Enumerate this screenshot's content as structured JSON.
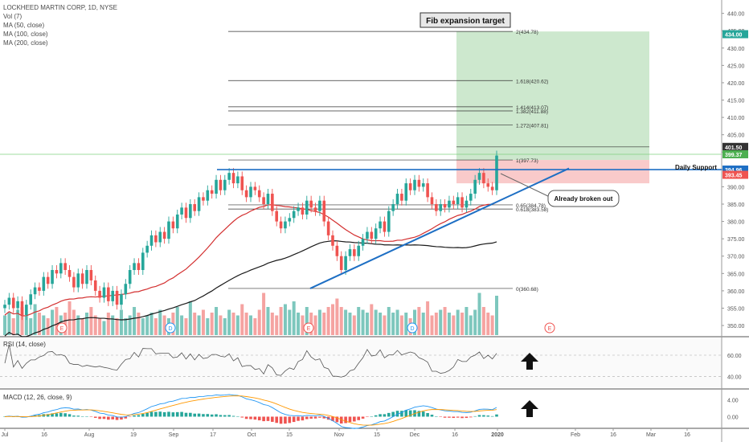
{
  "legend": {
    "symbol": "LOCKHEED MARTIN CORP, 1D, NYSE",
    "vol": "Vol (7)",
    "ma50": "MA (50, close)",
    "ma100": "MA (100, close)",
    "ma200": "MA (200, close)"
  },
  "annotations": {
    "fib_target": "Fib expansion target",
    "daily_support": "Daily Support",
    "broken_out": "Already broken out"
  },
  "colors": {
    "up": "#26a69a",
    "down": "#ef5350",
    "vol_up": "#7dc7bd",
    "vol_down": "#f5a3a1",
    "ma50": "#d32f2f",
    "ma100": "#1a1a1a",
    "trendline": "#1e6fc4",
    "support": "#1e6fc4",
    "target_zone": "#c8e6c9",
    "stop_zone": "#f8c4c4",
    "rsi": "#555555",
    "macd": "#2196f3",
    "signal": "#ff9800",
    "arrow": "#111111"
  },
  "chart_data": {
    "type": "candlestick",
    "price_axis": {
      "ylim": [
        347,
        442
      ],
      "ticks": [
        "440.00",
        "435.00",
        "430.00",
        "425.00",
        "420.00",
        "415.00",
        "410.00",
        "405.00",
        "400.00",
        "395.00",
        "390.00",
        "385.00",
        "380.00",
        "375.00",
        "370.00",
        "365.00",
        "360.00",
        "355.00",
        "350.00"
      ],
      "tick_values": [
        440,
        435,
        430,
        425,
        420,
        415,
        410,
        405,
        400,
        395,
        390,
        385,
        380,
        375,
        370,
        365,
        360,
        355,
        350
      ]
    },
    "price_labels": [
      {
        "text": "434.00",
        "value": 434.0,
        "color": "#26a69a"
      },
      {
        "text": "401.50",
        "value": 401.5,
        "color": "#333333"
      },
      {
        "text": "399.37",
        "value": 399.37,
        "color": "#4caf50"
      },
      {
        "text": "394.96",
        "value": 394.96,
        "color": "#1e6fc4"
      },
      {
        "text": "393.45",
        "value": 393.45,
        "color": "#ef5350"
      }
    ],
    "time_axis": [
      "Jul",
      "16",
      "Aug",
      "19",
      "Sep",
      "17",
      "Oct",
      "15",
      "Nov",
      "15",
      "Dec",
      "16",
      "2020",
      "Feb",
      "16",
      "Mar",
      "16"
    ],
    "fib_levels": [
      {
        "label": "2(434.78)",
        "value": 434.78
      },
      {
        "label": "1.618(420.62)",
        "value": 420.62
      },
      {
        "label": "1.414(413.07)",
        "value": 413.07
      },
      {
        "label": "1.382(411.88)",
        "value": 411.88
      },
      {
        "label": "1.272(407.81)",
        "value": 407.81
      },
      {
        "label": "1(397.73)",
        "value": 397.73
      },
      {
        "label": "0.65(384.78)",
        "value": 384.78
      },
      {
        "label": "0.618(383.58)",
        "value": 383.58
      },
      {
        "label": "0(360.68)",
        "value": 360.68
      }
    ],
    "closes": [
      356,
      358,
      355,
      357,
      353,
      356,
      359,
      361,
      360,
      364,
      362,
      366,
      365,
      368,
      366,
      364,
      361,
      365,
      362,
      366,
      363,
      360,
      358,
      361,
      357,
      360,
      356,
      359,
      362,
      366,
      368,
      366,
      371,
      373,
      376,
      374,
      377,
      375,
      380,
      378,
      382,
      384,
      381,
      385,
      383,
      387,
      386,
      389,
      388,
      392,
      389,
      392,
      394,
      391,
      393,
      389,
      387,
      390,
      389,
      387,
      385,
      388,
      383,
      380,
      378,
      380,
      381,
      383,
      384,
      382,
      386,
      384,
      383,
      386,
      380,
      376,
      373,
      370,
      366,
      370,
      372,
      370,
      373,
      375,
      377,
      375,
      378,
      380,
      377,
      383,
      385,
      388,
      386,
      391,
      389,
      392,
      390,
      391,
      387,
      385,
      383,
      385,
      384,
      386,
      385,
      387,
      384,
      386,
      388,
      392,
      394,
      391,
      390,
      389,
      399
    ],
    "volume_rel": [
      0.35,
      0.4,
      0.3,
      0.45,
      0.5,
      0.35,
      0.3,
      0.55,
      0.4,
      0.35,
      0.3,
      0.45,
      0.5,
      0.35,
      0.4,
      0.6,
      0.45,
      0.35,
      0.3,
      0.4,
      0.5,
      0.35,
      0.3,
      0.25,
      0.4,
      0.35,
      0.3,
      0.45,
      0.3,
      0.35,
      0.5,
      0.4,
      0.3,
      0.35,
      0.4,
      0.3,
      0.45,
      0.35,
      0.3,
      0.4,
      0.5,
      0.35,
      0.3,
      0.6,
      0.4,
      0.35,
      0.45,
      0.3,
      0.4,
      0.5,
      0.35,
      0.3,
      0.45,
      0.4,
      0.35,
      0.55,
      0.4,
      0.35,
      0.3,
      0.45,
      0.75,
      0.5,
      0.4,
      0.35,
      0.5,
      0.55,
      0.45,
      0.6,
      0.4,
      0.35,
      0.5,
      0.4,
      0.35,
      0.45,
      0.4,
      0.5,
      0.55,
      0.65,
      0.5,
      0.45,
      0.4,
      0.35,
      0.5,
      0.45,
      0.4,
      0.55,
      0.45,
      0.4,
      0.35,
      0.5,
      0.4,
      0.45,
      0.35,
      0.4,
      0.3,
      0.45,
      0.5,
      0.4,
      0.6,
      0.35,
      0.4,
      0.45,
      0.5,
      0.4,
      0.35,
      0.45,
      0.4,
      0.5,
      0.35,
      0.45,
      0.75,
      0.5,
      0.4,
      0.35,
      0.7
    ],
    "rsi_axis": {
      "ylim": [
        30,
        75
      ],
      "ticks": [
        "60.00",
        "40.00"
      ],
      "tick_values": [
        60,
        40
      ]
    },
    "macd_axis": {
      "ylim": [
        -2.2,
        6.2
      ],
      "ticks": [
        "4.00",
        "0.00"
      ],
      "tick_values": [
        4,
        0
      ]
    },
    "indicators": {
      "rsi": "RSI (14, close)",
      "macd": "MACD (12, 26, close, 9)"
    },
    "events": [
      "E",
      "D",
      "E",
      "D",
      "E"
    ]
  }
}
